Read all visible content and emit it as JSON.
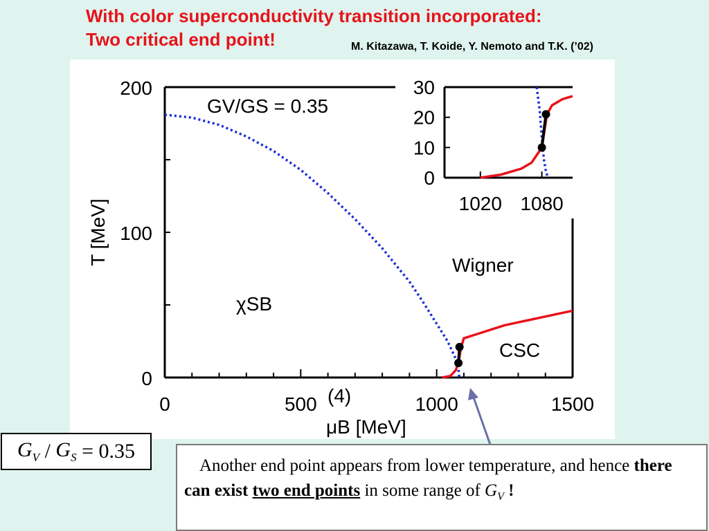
{
  "slide": {
    "title_line1": "With color superconductivity transition incorporated:",
    "title_line2": "Two critical end point!",
    "citation": "M. Kitazawa, T. Koide, Y. Nemoto and T.K. (’02)"
  },
  "formula": {
    "g1": "G",
    "sub1": "V",
    "slash": " / ",
    "g2": "G",
    "sub2": "S",
    "rhs": " = 0.35"
  },
  "note": {
    "text1": "Another end point appears from lower temperature, and hence ",
    "bold1": "there can exist ",
    "bold_underlined": "two end points",
    "text2": " in some range of ",
    "gv_g": "G",
    "gv_sub": "V",
    "bang": " !"
  },
  "colors": {
    "title": "#e8121b",
    "crossover_line": "#1a2cd6",
    "csc_line": "#e8121b",
    "background": "#dff4ee",
    "arrow": "#6b6fa8"
  },
  "chart_data": [
    {
      "type": "line",
      "chart_label": "GV/GS = 0.35",
      "xlabel": "μB [MeV]",
      "ylabel": "T [MeV]",
      "xlim": [
        0,
        1500
      ],
      "ylim": [
        0,
        200
      ],
      "x_ticks": [
        "0",
        "500",
        "1000",
        "1500"
      ],
      "y_ticks": [
        "0",
        "100",
        "200"
      ],
      "grid": false,
      "region_labels": [
        "χSB",
        "Wigner",
        "CSC"
      ],
      "annotation": "(4)",
      "series": [
        {
          "style": "dotted",
          "color": "#1a2cd6",
          "x": [
            0,
            100,
            200,
            300,
            400,
            500,
            600,
            700,
            800,
            900,
            950,
            1000,
            1040,
            1070,
            1080,
            1083
          ],
          "y": [
            181,
            179,
            174,
            166,
            156,
            143,
            127,
            109,
            89,
            66,
            52,
            37,
            25,
            13,
            6,
            0
          ]
        },
        {
          "style": "solid",
          "color": "#e8121b",
          "x": [
            1020,
            1050,
            1070,
            1080,
            1090,
            1100,
            1150,
            1200,
            1250,
            1300,
            1350,
            1400,
            1450,
            1500
          ],
          "y": [
            0,
            1,
            5,
            10,
            21,
            27,
            30,
            33,
            36,
            38,
            40,
            42,
            44,
            46
          ]
        },
        {
          "style": "solid-black",
          "color": "#000000",
          "x": [
            1080,
            1084
          ],
          "y": [
            10,
            21
          ]
        }
      ],
      "points": [
        {
          "x": 1080,
          "y": 10
        },
        {
          "x": 1084,
          "y": 21
        }
      ]
    },
    {
      "type": "line",
      "inset": true,
      "xlim": [
        985,
        1110
      ],
      "ylim": [
        0,
        30
      ],
      "x_ticks": [
        "1020",
        "1080"
      ],
      "y_ticks": [
        "0",
        "10",
        "20",
        "30"
      ],
      "series": [
        {
          "style": "dotted",
          "color": "#1a2cd6",
          "x": [
            1075,
            1078,
            1080,
            1082,
            1084,
            1086
          ],
          "y": [
            30,
            22,
            13,
            6,
            2,
            0
          ]
        },
        {
          "style": "solid",
          "color": "#e8121b",
          "x": [
            1020,
            1040,
            1060,
            1070,
            1080,
            1085,
            1090,
            1100,
            1110
          ],
          "y": [
            0,
            1,
            3,
            5,
            10,
            21,
            24,
            26,
            27
          ]
        },
        {
          "style": "solid-black",
          "color": "#000000",
          "x": [
            1080,
            1084
          ],
          "y": [
            10,
            21
          ]
        }
      ],
      "points": [
        {
          "x": 1080,
          "y": 10
        },
        {
          "x": 1084,
          "y": 21
        }
      ]
    }
  ]
}
